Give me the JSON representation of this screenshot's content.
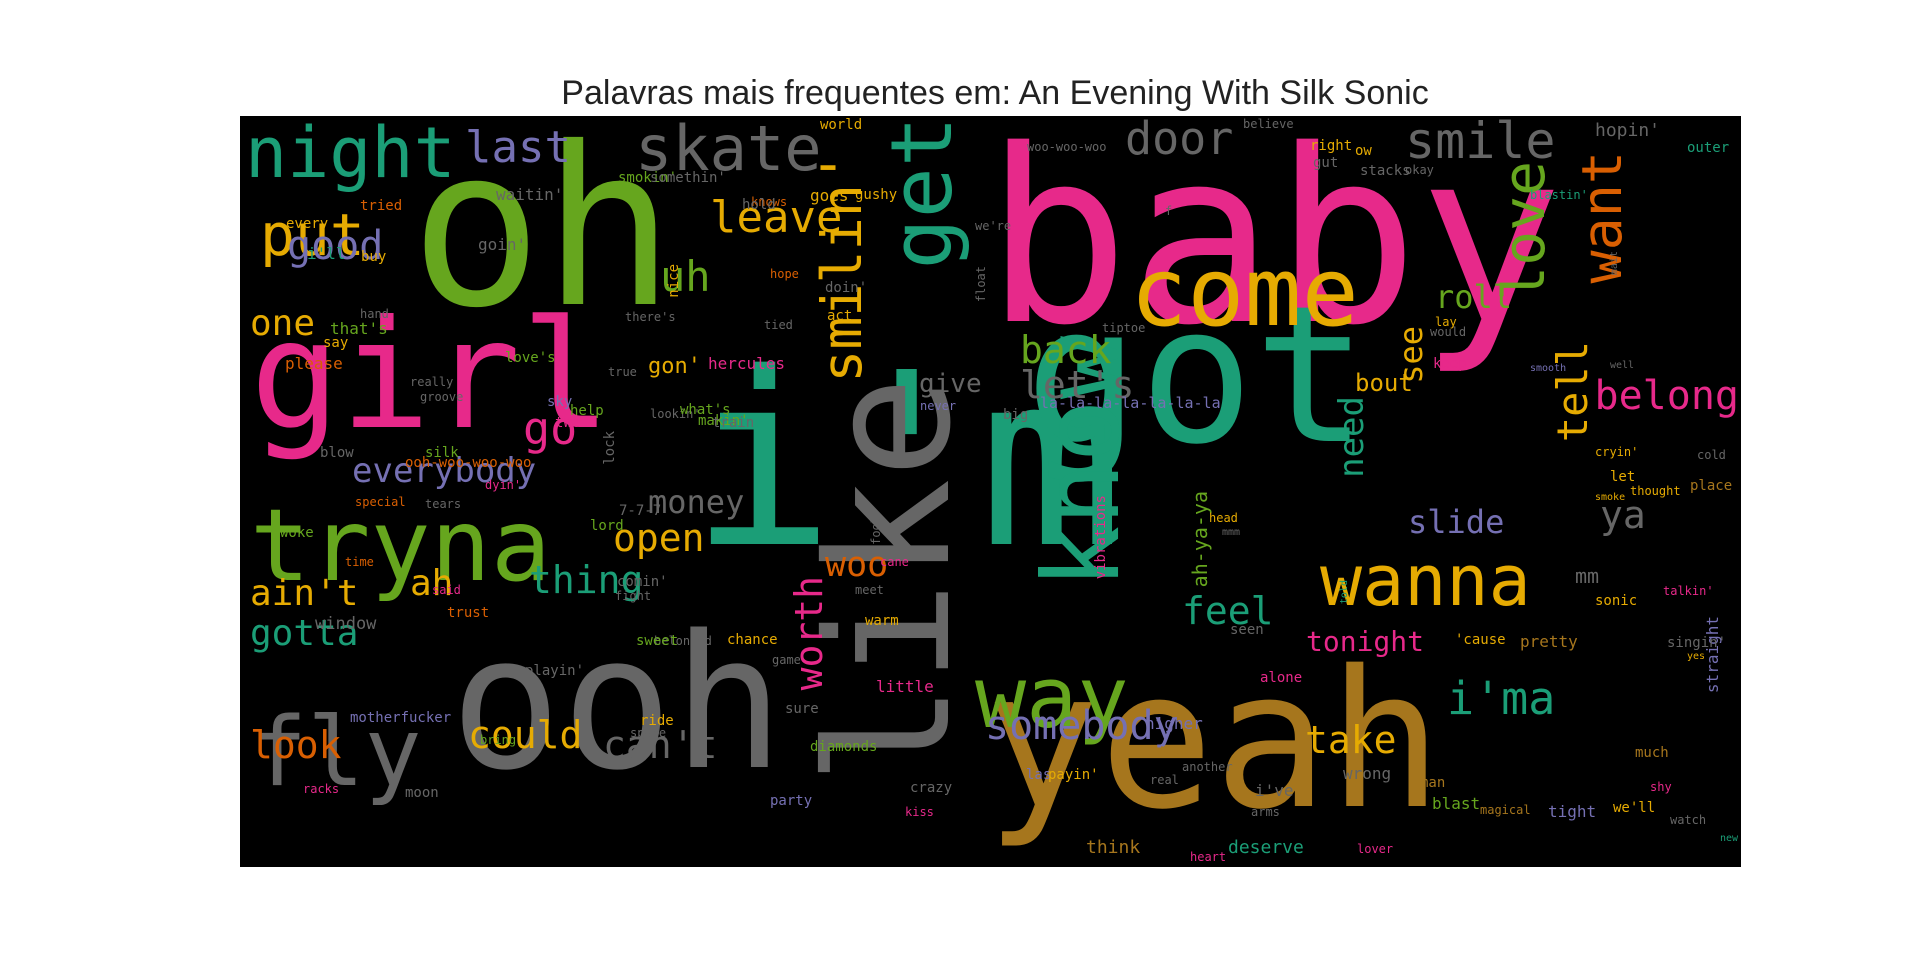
{
  "title": "Palavras mais frequentes em: An Evening With Silk Sonic",
  "palette": [
    "#1b9e77",
    "#d95f02",
    "#7570b3",
    "#e7298a",
    "#66a61e",
    "#e6ab02",
    "#a6761d",
    "#666666"
  ],
  "words": [
    "baby",
    "oh",
    "i'm",
    "girl",
    "got",
    "yeah",
    "ooh",
    "like",
    "know",
    "tryna",
    "come",
    "get",
    "fly",
    "way",
    "night",
    "skate",
    "wanna",
    "love",
    "put",
    "smile",
    "want",
    "door",
    "smilin'",
    "last",
    "good",
    "one",
    "uh",
    "leave",
    "belong",
    "tell",
    "roll",
    "back",
    "let's",
    "go",
    "everybody",
    "money",
    "see",
    "need",
    "open",
    "slide",
    "ya",
    "woo",
    "ain't",
    "gotta",
    "ah",
    "thing",
    "feel",
    "tonight",
    "worth",
    "somebody",
    "i'ma",
    "take",
    "look",
    "could",
    "can't",
    "mm",
    "sonic",
    "ah-ya-ya",
    "give",
    "bout",
    "gon'",
    "la-la-la-la-la-la-la",
    "that's",
    "say",
    "please",
    "really",
    "groove",
    "love's",
    "silk",
    "blow",
    "special",
    "tears",
    "dyin'",
    "woke",
    "time",
    "said",
    "trust",
    "window",
    "motherfucker",
    "racks",
    "moon",
    "bring",
    "playin'",
    "belonged",
    "sweet",
    "chance",
    "game",
    "ride",
    "space",
    "sure",
    "diamonds",
    "las",
    "payin'",
    "crazy",
    "kiss",
    "party",
    "little",
    "higher",
    "vegas",
    "real",
    "another",
    "alone",
    "seen",
    "wrong",
    "arms",
    "i've",
    "man",
    "blast",
    "we'll",
    "magical",
    "tight",
    "deserve",
    "think",
    "heart",
    "lover",
    "new",
    "watch",
    "shy",
    "much",
    "straight",
    "pretty",
    "'cause",
    "singin'",
    "yes",
    "talkin'",
    "cold",
    "place",
    "smoke",
    "thought",
    "cryin'",
    "let",
    "mmm",
    "head",
    "told",
    "fool",
    "cane",
    "meet",
    "warm",
    "comin'",
    "fight",
    "lord",
    "7-7-7",
    "vibrations",
    "help",
    "two",
    "sky",
    "lookin'",
    "lock",
    "makin'",
    "what's",
    "train",
    "hercules",
    "never",
    "big",
    "keep",
    "smooth",
    "well",
    "would",
    "lay",
    "tiptoe",
    "hope",
    "doin'",
    "act",
    "tied",
    "there's",
    "float",
    "nice",
    "mait",
    "we're",
    "f",
    "knows",
    "hand",
    "i'll",
    "goin'",
    "buy",
    "every",
    "tried",
    "waitin'",
    "smokin'",
    "somethin'",
    "hold",
    "goes",
    "gushy",
    "world",
    "woo-woo-woo",
    "believe",
    "right",
    "gut",
    "stacks",
    "okay",
    "ow",
    "blastin'",
    "hopin'",
    "outer",
    "true",
    "ooh-woo-woo-woo"
  ]
}
